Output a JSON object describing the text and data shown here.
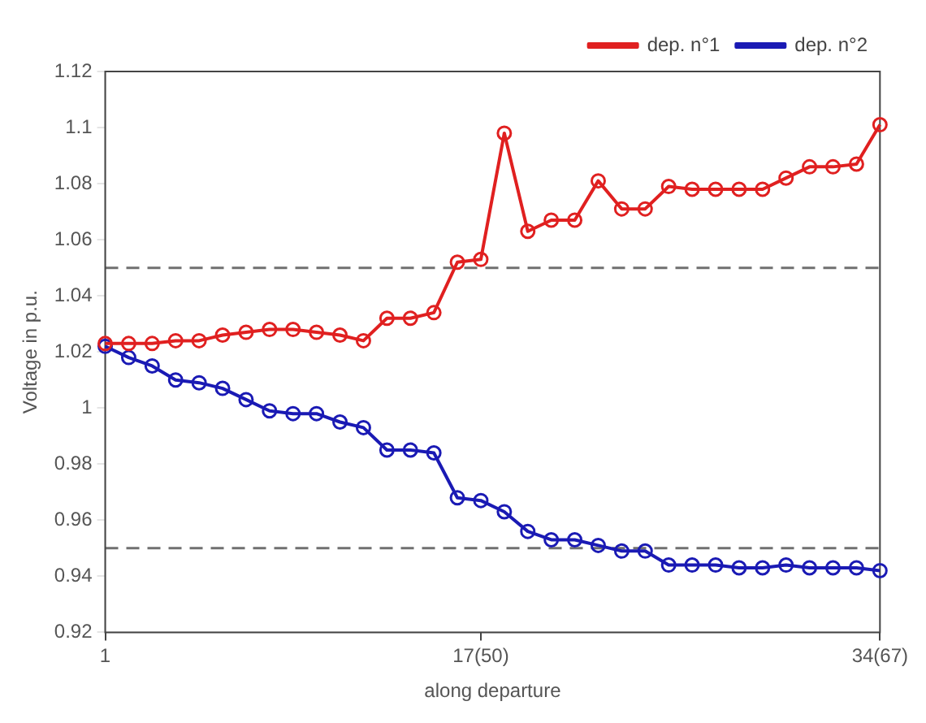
{
  "chart_data": {
    "type": "line",
    "xlabel": "along departure",
    "ylabel": "Voltage in p.u.",
    "categories": [
      "1",
      null,
      null,
      null,
      null,
      null,
      null,
      null,
      null,
      null,
      null,
      null,
      null,
      null,
      null,
      null,
      "17(50)",
      null,
      null,
      null,
      null,
      null,
      null,
      null,
      null,
      null,
      null,
      null,
      null,
      null,
      null,
      null,
      null,
      "34(67)"
    ],
    "series": [
      {
        "name": "dep. n°1",
        "color": "#e02020",
        "values": [
          1.023,
          1.023,
          1.023,
          1.024,
          1.024,
          1.026,
          1.027,
          1.028,
          1.028,
          1.027,
          1.026,
          1.024,
          1.032,
          1.032,
          1.034,
          1.052,
          1.053,
          1.098,
          1.063,
          1.067,
          1.067,
          1.081,
          1.071,
          1.071,
          1.079,
          1.078,
          1.078,
          1.078,
          1.078,
          1.082,
          1.086,
          1.086,
          1.087,
          1.101
        ]
      },
      {
        "name": "dep. n°2",
        "color": "#1a1ab4",
        "values": [
          1.022,
          1.018,
          1.015,
          1.01,
          1.009,
          1.007,
          1.003,
          0.999,
          0.998,
          0.998,
          0.995,
          0.993,
          0.985,
          0.985,
          0.984,
          0.968,
          0.967,
          0.963,
          0.956,
          0.953,
          0.953,
          0.951,
          0.949,
          0.949,
          0.944,
          0.944,
          0.944,
          0.943,
          0.943,
          0.944,
          0.943,
          0.943,
          0.943,
          0.942
        ]
      }
    ],
    "ylim": [
      0.92,
      1.12
    ],
    "yticks": [
      0.92,
      0.94,
      0.96,
      0.98,
      1,
      1.02,
      1.04,
      1.06,
      1.08,
      1.1,
      1.12
    ],
    "ref_lines": [
      {
        "axis": "y",
        "value": 1.05,
        "color": "#707070",
        "line_style": "dashed"
      },
      {
        "axis": "y",
        "value": 0.95,
        "color": "#707070",
        "line_style": "dashed"
      }
    ],
    "grid": false,
    "legend": "top right",
    "marker": "circle",
    "line_style": "solid"
  }
}
